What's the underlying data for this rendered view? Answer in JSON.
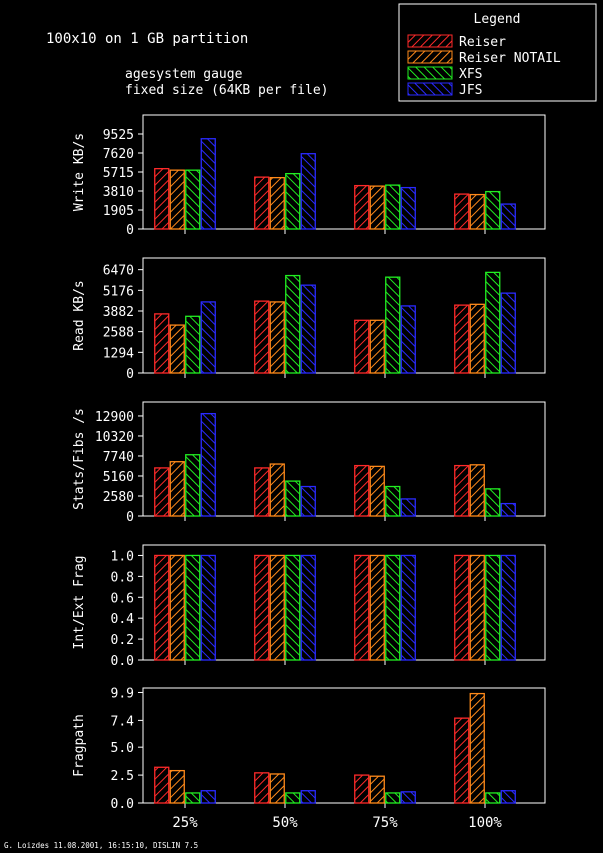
{
  "title": {
    "line1": "100x10 on 1 GB partition",
    "line2": "agesystem gauge",
    "line3": "fixed size (64KB per file)"
  },
  "legend": {
    "title": "Legend",
    "items": [
      {
        "label": "Reiser",
        "color": "#ff2a2a"
      },
      {
        "label": "Reiser NOTAIL",
        "color": "#ff8a1a"
      },
      {
        "label": "XFS",
        "color": "#22ee22"
      },
      {
        "label": "JFS",
        "color": "#2a2aff"
      }
    ]
  },
  "footer": "G. Loizdes 11.08.2001, 16:15:10, DISLIN 7.5",
  "chart_data": [
    {
      "type": "bar",
      "ylabel": "Write KB/s",
      "ylim": [
        0,
        11430
      ],
      "yticks": [
        "0",
        "1905",
        "3810",
        "5715",
        "7620",
        "9525"
      ],
      "categories": [
        "25%",
        "50%",
        "75%",
        "100%"
      ],
      "series": [
        {
          "name": "Reiser",
          "values": [
            6050,
            5200,
            4350,
            3500
          ]
        },
        {
          "name": "Reiser NOTAIL",
          "values": [
            5900,
            5150,
            4300,
            3450
          ]
        },
        {
          "name": "XFS",
          "values": [
            5900,
            5550,
            4400,
            3750
          ]
        },
        {
          "name": "JFS",
          "values": [
            9050,
            7550,
            4150,
            2500
          ]
        }
      ]
    },
    {
      "type": "bar",
      "ylabel": "Read KB/s",
      "ylim": [
        0,
        7200
      ],
      "yticks": [
        "0",
        "1294",
        "2588",
        "3882",
        "5176",
        "6470"
      ],
      "categories": [
        "25%",
        "50%",
        "75%",
        "100%"
      ],
      "series": [
        {
          "name": "Reiser",
          "values": [
            3700,
            4500,
            3300,
            4250
          ]
        },
        {
          "name": "Reiser NOTAIL",
          "values": [
            3000,
            4450,
            3300,
            4300
          ]
        },
        {
          "name": "XFS",
          "values": [
            3550,
            6100,
            6000,
            6300
          ]
        },
        {
          "name": "JFS",
          "values": [
            4450,
            5500,
            4200,
            5000
          ]
        }
      ]
    },
    {
      "type": "bar",
      "ylabel": "Stats/Fibs /s",
      "ylim": [
        0,
        14700
      ],
      "yticks": [
        "0",
        "2580",
        "5160",
        "7740",
        "10320",
        "12900"
      ],
      "categories": [
        "25%",
        "50%",
        "75%",
        "100%"
      ],
      "series": [
        {
          "name": "Reiser",
          "values": [
            6200,
            6200,
            6500,
            6500
          ]
        },
        {
          "name": "Reiser NOTAIL",
          "values": [
            7000,
            6700,
            6400,
            6600
          ]
        },
        {
          "name": "XFS",
          "values": [
            7900,
            4500,
            3800,
            3500
          ]
        },
        {
          "name": "JFS",
          "values": [
            13200,
            3800,
            2200,
            1600
          ]
        }
      ]
    },
    {
      "type": "bar",
      "ylabel": "Int/Ext Frag",
      "ylim": [
        0,
        1.1
      ],
      "yticks": [
        "0.0",
        "0.2",
        "0.4",
        "0.6",
        "0.8",
        "1.0"
      ],
      "categories": [
        "25%",
        "50%",
        "75%",
        "100%"
      ],
      "series": [
        {
          "name": "Reiser",
          "values": [
            1.0,
            1.0,
            1.0,
            1.0
          ]
        },
        {
          "name": "Reiser NOTAIL",
          "values": [
            1.0,
            1.0,
            1.0,
            1.0
          ]
        },
        {
          "name": "XFS",
          "values": [
            1.0,
            1.0,
            1.0,
            1.0
          ]
        },
        {
          "name": "JFS",
          "values": [
            1.0,
            1.0,
            1.0,
            1.0
          ]
        }
      ]
    },
    {
      "type": "bar",
      "ylabel": "Fragpath",
      "ylim": [
        0,
        10.3
      ],
      "yticks": [
        "0.0",
        "2.5",
        "5.0",
        "7.4",
        "9.9"
      ],
      "categories": [
        "25%",
        "50%",
        "75%",
        "100%"
      ],
      "series": [
        {
          "name": "Reiser",
          "values": [
            3.2,
            2.7,
            2.5,
            7.6
          ]
        },
        {
          "name": "Reiser NOTAIL",
          "values": [
            2.9,
            2.6,
            2.4,
            9.8
          ]
        },
        {
          "name": "XFS",
          "values": [
            0.9,
            0.9,
            0.9,
            0.9
          ]
        },
        {
          "name": "JFS",
          "values": [
            1.1,
            1.1,
            1.0,
            1.1
          ]
        }
      ]
    }
  ]
}
